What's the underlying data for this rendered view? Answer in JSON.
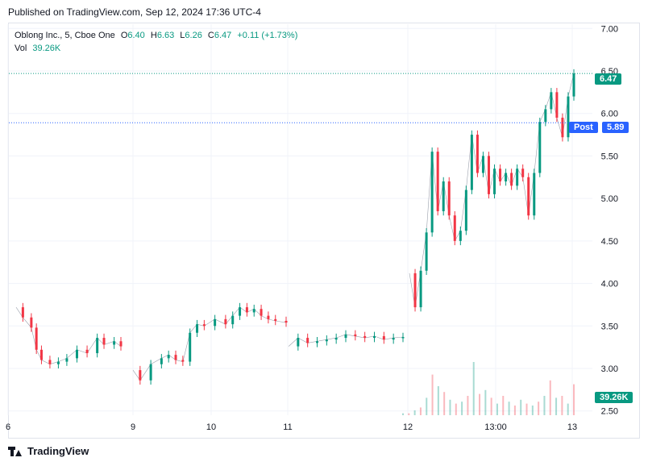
{
  "published": "Published on TradingView.com, Sep 12, 2024 17:36 UTC-4",
  "legend": {
    "symbol": "Oblong Inc., 5, Cboe One",
    "open_label": "O",
    "open": "6.40",
    "high_label": "H",
    "high": "6.63",
    "low_label": "L",
    "low": "6.26",
    "close_label": "C",
    "close": "6.47",
    "change": "+0.11 (+1.73%)",
    "vol_label": "Vol",
    "vol": "39.26K"
  },
  "tags": {
    "last_price": "6.47",
    "post_label": "Post",
    "post_price": "5.89",
    "volume": "39.26K"
  },
  "footer": {
    "brand": "TradingView"
  },
  "colors": {
    "up": "#089981",
    "down": "#f23645",
    "post_blue": "#2962ff",
    "grid": "#f0f3fa",
    "text": "#131722"
  },
  "chart_data": {
    "type": "candlestick",
    "y_ticks": [
      "7.00",
      "6.50",
      "6.00",
      "5.50",
      "5.00",
      "4.50",
      "4.00",
      "3.50",
      "3.00",
      "2.50"
    ],
    "x_ticks": [
      "6",
      "9",
      "10",
      "11",
      "12",
      "13:00",
      "13"
    ],
    "ylim": [
      2.45,
      7.05
    ],
    "price_lines": {
      "last": 6.47,
      "post": 5.89
    },
    "sessions": [
      {
        "label": "6",
        "points": [
          [
            0,
            3.72
          ],
          [
            0.2,
            3.6
          ],
          [
            0.45,
            3.48
          ],
          [
            0.6,
            3.22
          ],
          [
            0.75,
            3.1
          ],
          [
            1,
            3.05
          ],
          [
            1.25,
            3.08
          ],
          [
            1.5,
            3.12
          ],
          [
            1.8,
            3.22
          ],
          [
            2.1,
            3.18
          ],
          [
            2.4,
            3.36
          ],
          [
            2.6,
            3.28
          ],
          [
            2.9,
            3.32
          ],
          [
            3.1,
            3.26
          ]
        ]
      },
      {
        "label": "9",
        "points": [
          [
            0,
            2.98
          ],
          [
            0.2,
            2.86
          ],
          [
            0.5,
            3.05
          ],
          [
            0.8,
            3.12
          ],
          [
            1,
            3.16
          ],
          [
            1.2,
            3.1
          ],
          [
            1.4,
            3.08
          ],
          [
            1.6,
            3.42
          ],
          [
            1.8,
            3.52
          ],
          [
            2.0,
            3.5
          ],
          [
            2.3,
            3.58
          ],
          [
            2.6,
            3.52
          ],
          [
            2.8,
            3.62
          ],
          [
            3.0,
            3.72
          ],
          [
            3.2,
            3.66
          ],
          [
            3.4,
            3.7
          ],
          [
            3.6,
            3.62
          ],
          [
            3.8,
            3.58
          ],
          [
            4.0,
            3.56
          ],
          [
            4.3,
            3.54
          ]
        ]
      },
      {
        "label": "11",
        "points": [
          [
            0,
            3.26
          ],
          [
            0.3,
            3.36
          ],
          [
            0.6,
            3.3
          ],
          [
            0.9,
            3.32
          ],
          [
            1.2,
            3.34
          ],
          [
            1.5,
            3.36
          ],
          [
            1.8,
            3.4
          ],
          [
            2.1,
            3.38
          ],
          [
            2.4,
            3.36
          ],
          [
            2.7,
            3.38
          ],
          [
            3.0,
            3.34
          ],
          [
            3.3,
            3.36
          ],
          [
            3.6,
            3.37
          ]
        ]
      },
      {
        "label": "12",
        "points": [
          [
            0,
            4.12
          ],
          [
            0.15,
            3.72
          ],
          [
            0.3,
            4.15
          ],
          [
            0.45,
            4.6
          ],
          [
            0.6,
            5.55
          ],
          [
            0.75,
            4.85
          ],
          [
            0.9,
            5.2
          ],
          [
            1.05,
            4.8
          ],
          [
            1.2,
            4.5
          ],
          [
            1.35,
            4.62
          ],
          [
            1.5,
            5.1
          ],
          [
            1.65,
            5.75
          ],
          [
            1.8,
            5.3
          ],
          [
            1.95,
            5.5
          ],
          [
            2.1,
            5.05
          ],
          [
            2.25,
            5.35
          ],
          [
            2.4,
            5.2
          ],
          [
            2.55,
            5.3
          ],
          [
            2.7,
            5.15
          ],
          [
            2.85,
            5.35
          ],
          [
            3.0,
            5.25
          ],
          [
            3.15,
            4.8
          ],
          [
            3.3,
            5.3
          ],
          [
            3.45,
            5.9
          ],
          [
            3.6,
            6.05
          ],
          [
            3.75,
            6.25
          ],
          [
            3.9,
            5.95
          ],
          [
            4.05,
            5.72
          ],
          [
            4.2,
            6.2
          ],
          [
            4.35,
            6.47
          ]
        ]
      }
    ],
    "volume_bars": [
      0.02,
      0.02,
      0.05,
      0.08,
      0.18,
      0.42,
      0.3,
      0.24,
      0.16,
      0.12,
      0.14,
      0.2,
      0.55,
      0.22,
      0.26,
      0.18,
      0.12,
      0.2,
      0.14,
      0.1,
      0.16,
      0.12,
      0.1,
      0.14,
      0.2,
      0.36,
      0.18,
      0.2,
      0.12,
      0.32
    ]
  }
}
